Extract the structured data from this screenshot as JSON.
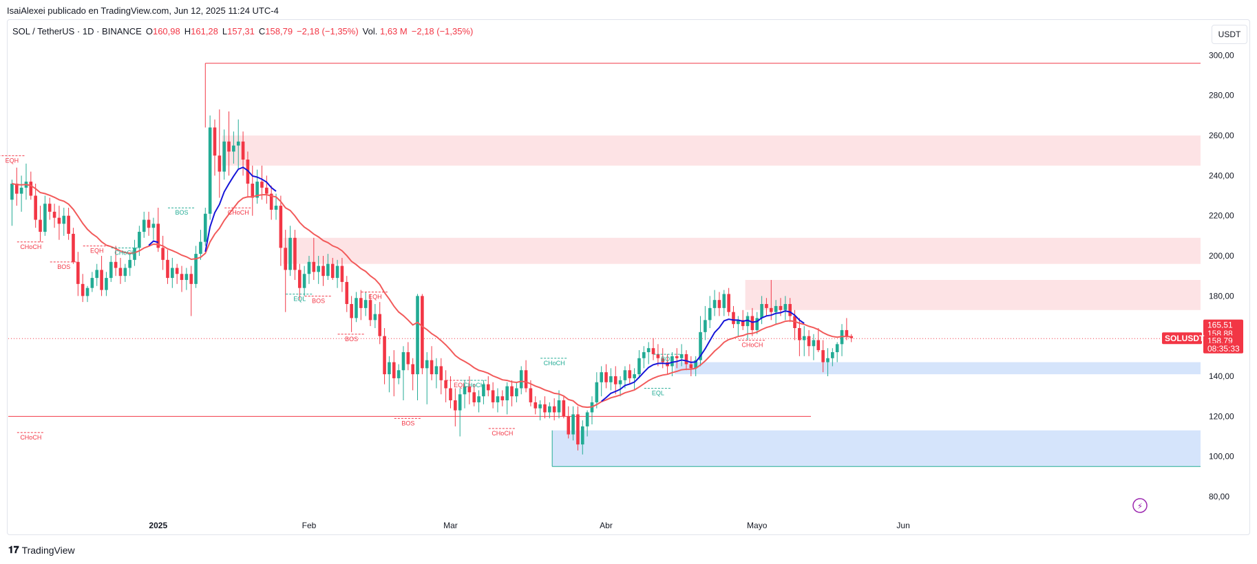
{
  "caption": "IsaiAlexei publicado en TradingView.com, Jun 12, 2025 11:24 UTC-4",
  "legend": {
    "symbol": "SOL / TetherUS · 1D · BINANCE",
    "o_label": "O",
    "o_value": "160,98",
    "h_label": "H",
    "h_value": "161,28",
    "l_label": "L",
    "l_value": "157,31",
    "c_label": "C",
    "c_value": "158,79",
    "change": "−2,18 (−1,35%)",
    "vol_label": "Vol.",
    "vol_value": "1,63 M",
    "vol_change": "−2,18 (−1,35%)"
  },
  "currency_button": "USDT",
  "brand": "TradingView",
  "price_tags": [
    {
      "text": "165,51",
      "color": "#f23645"
    },
    {
      "text": "158,88",
      "color": "#f23645"
    },
    {
      "text": "158,79",
      "color": "#f23645"
    },
    {
      "text": "08:35:33",
      "color": "#f23645"
    }
  ],
  "symbol_tag": "SOLUSDT",
  "colors": {
    "up": "#22ab94",
    "down": "#f23645",
    "ema_fast": "#1515d8",
    "ema_slow": "#f25a5a",
    "supply": "#fde3e5",
    "demand": "#d5e4fb"
  },
  "chart_data": {
    "type": "candlestick",
    "ylim": [
      75,
      305
    ],
    "y_ticks": [
      "80,00",
      "100,00",
      "120,00",
      "140,00",
      "160,00",
      "180,00",
      "200,00",
      "220,00",
      "240,00",
      "260,00",
      "280,00",
      "300,00"
    ],
    "x_ticks": [
      "2025",
      "Feb",
      "Mar",
      "Abr",
      "Mayo",
      "Jun"
    ],
    "candles": [
      [
        228,
        238,
        215,
        236
      ],
      [
        236,
        244,
        225,
        231
      ],
      [
        231,
        240,
        222,
        234
      ],
      [
        234,
        246,
        228,
        237
      ],
      [
        237,
        242,
        228,
        230
      ],
      [
        230,
        236,
        214,
        218
      ],
      [
        218,
        225,
        207,
        212
      ],
      [
        212,
        230,
        210,
        226
      ],
      [
        226,
        229,
        218,
        222
      ],
      [
        222,
        226,
        214,
        219
      ],
      [
        219,
        225,
        208,
        216
      ],
      [
        216,
        224,
        210,
        220
      ],
      [
        220,
        224,
        208,
        211
      ],
      [
        211,
        214,
        196,
        197
      ],
      [
        197,
        202,
        180,
        186
      ],
      [
        186,
        191,
        177,
        180
      ],
      [
        180,
        185,
        177,
        184
      ],
      [
        184,
        192,
        182,
        189
      ],
      [
        189,
        196,
        185,
        193
      ],
      [
        193,
        200,
        180,
        183
      ],
      [
        183,
        192,
        180,
        189
      ],
      [
        189,
        200,
        187,
        197
      ],
      [
        197,
        205,
        190,
        194
      ],
      [
        194,
        199,
        186,
        190
      ],
      [
        190,
        196,
        187,
        194
      ],
      [
        194,
        201,
        190,
        198
      ],
      [
        198,
        208,
        195,
        204
      ],
      [
        204,
        215,
        200,
        212
      ],
      [
        212,
        222,
        209,
        218
      ],
      [
        218,
        222,
        210,
        214
      ],
      [
        214,
        219,
        208,
        216
      ],
      [
        216,
        224,
        202,
        204
      ],
      [
        204,
        210,
        193,
        198
      ],
      [
        198,
        203,
        186,
        189
      ],
      [
        189,
        199,
        184,
        194
      ],
      [
        194,
        196,
        186,
        191
      ],
      [
        191,
        195,
        182,
        188
      ],
      [
        188,
        194,
        183,
        191
      ],
      [
        191,
        195,
        170,
        186
      ],
      [
        186,
        205,
        184,
        201
      ],
      [
        201,
        213,
        198,
        207
      ],
      [
        207,
        224,
        205,
        221
      ],
      [
        221,
        270,
        218,
        264
      ],
      [
        264,
        268,
        240,
        250
      ],
      [
        250,
        273,
        229,
        242
      ],
      [
        242,
        263,
        238,
        257
      ],
      [
        257,
        272,
        240,
        252
      ],
      [
        252,
        262,
        246,
        255
      ],
      [
        255,
        268,
        243,
        257
      ],
      [
        257,
        262,
        240,
        248
      ],
      [
        248,
        252,
        229,
        236
      ],
      [
        236,
        245,
        220,
        229
      ],
      [
        229,
        243,
        226,
        237
      ],
      [
        237,
        245,
        228,
        234
      ],
      [
        234,
        240,
        226,
        231
      ],
      [
        231,
        235,
        218,
        223
      ],
      [
        223,
        231,
        218,
        225
      ],
      [
        225,
        230,
        195,
        204
      ],
      [
        204,
        213,
        172,
        193
      ],
      [
        193,
        215,
        190,
        209
      ],
      [
        209,
        213,
        188,
        193
      ],
      [
        193,
        196,
        178,
        184
      ],
      [
        184,
        195,
        180,
        191
      ],
      [
        191,
        200,
        186,
        197
      ],
      [
        197,
        209,
        188,
        192
      ],
      [
        192,
        200,
        186,
        195
      ],
      [
        195,
        200,
        185,
        190
      ],
      [
        190,
        201,
        188,
        196
      ],
      [
        196,
        199,
        188,
        189
      ],
      [
        189,
        198,
        184,
        195
      ],
      [
        195,
        199,
        182,
        187
      ],
      [
        187,
        190,
        172,
        176
      ],
      [
        176,
        180,
        162,
        169
      ],
      [
        169,
        182,
        167,
        179
      ],
      [
        179,
        183,
        168,
        174
      ],
      [
        174,
        182,
        170,
        178
      ],
      [
        178,
        181,
        165,
        168
      ],
      [
        168,
        176,
        164,
        171
      ],
      [
        171,
        177,
        156,
        160
      ],
      [
        160,
        164,
        136,
        141
      ],
      [
        141,
        150,
        132,
        147
      ],
      [
        147,
        153,
        130,
        139
      ],
      [
        139,
        146,
        136,
        143
      ],
      [
        143,
        155,
        128,
        152
      ],
      [
        152,
        157,
        143,
        146
      ],
      [
        146,
        149,
        133,
        141
      ],
      [
        141,
        181,
        128,
        180
      ],
      [
        180,
        181,
        141,
        144
      ],
      [
        144,
        152,
        126,
        148
      ],
      [
        148,
        155,
        138,
        141
      ],
      [
        141,
        149,
        134,
        145
      ],
      [
        145,
        149,
        131,
        138
      ],
      [
        138,
        143,
        127,
        134
      ],
      [
        134,
        140,
        124,
        128
      ],
      [
        128,
        134,
        115,
        123
      ],
      [
        123,
        134,
        110,
        131
      ],
      [
        131,
        138,
        124,
        135
      ],
      [
        135,
        140,
        126,
        132
      ],
      [
        132,
        136,
        125,
        127
      ],
      [
        127,
        133,
        122,
        130
      ],
      [
        130,
        138,
        126,
        136
      ],
      [
        136,
        140,
        130,
        133
      ],
      [
        133,
        137,
        124,
        127
      ],
      [
        127,
        134,
        122,
        130
      ],
      [
        130,
        133,
        125,
        128
      ],
      [
        128,
        137,
        121,
        135
      ],
      [
        135,
        138,
        125,
        130
      ],
      [
        130,
        137,
        127,
        134
      ],
      [
        134,
        145,
        131,
        143
      ],
      [
        143,
        148,
        132,
        134
      ],
      [
        134,
        138,
        125,
        127
      ],
      [
        127,
        130,
        121,
        124
      ],
      [
        124,
        128,
        118,
        126
      ],
      [
        126,
        130,
        119,
        122
      ],
      [
        122,
        127,
        119,
        125
      ],
      [
        125,
        129,
        118,
        122
      ],
      [
        122,
        133,
        119,
        128
      ],
      [
        128,
        130,
        119,
        120
      ],
      [
        120,
        125,
        109,
        111
      ],
      [
        111,
        125,
        108,
        121
      ],
      [
        121,
        125,
        103,
        106
      ],
      [
        106,
        118,
        101,
        115
      ],
      [
        115,
        123,
        110,
        122
      ],
      [
        122,
        130,
        116,
        127
      ],
      [
        127,
        142,
        124,
        137
      ],
      [
        137,
        145,
        130,
        142
      ],
      [
        142,
        146,
        134,
        137
      ],
      [
        137,
        144,
        133,
        140
      ],
      [
        140,
        145,
        131,
        136
      ],
      [
        136,
        140,
        130,
        138
      ],
      [
        138,
        145,
        134,
        143
      ],
      [
        143,
        146,
        136,
        139
      ],
      [
        139,
        144,
        133,
        141
      ],
      [
        141,
        153,
        139,
        149
      ],
      [
        149,
        155,
        144,
        152
      ],
      [
        152,
        157,
        146,
        154
      ],
      [
        154,
        159,
        148,
        151
      ],
      [
        151,
        156,
        145,
        149
      ],
      [
        149,
        154,
        144,
        147
      ],
      [
        147,
        151,
        141,
        145
      ],
      [
        145,
        152,
        140,
        150
      ],
      [
        150,
        154,
        144,
        149
      ],
      [
        149,
        156,
        145,
        151
      ],
      [
        151,
        153,
        143,
        146
      ],
      [
        146,
        150,
        140,
        144
      ],
      [
        144,
        150,
        140,
        148
      ],
      [
        148,
        170,
        145,
        162
      ],
      [
        162,
        175,
        158,
        168
      ],
      [
        168,
        180,
        164,
        174
      ],
      [
        174,
        183,
        170,
        178
      ],
      [
        178,
        182,
        170,
        174
      ],
      [
        174,
        183,
        170,
        181
      ],
      [
        181,
        184,
        170,
        172
      ],
      [
        172,
        175,
        164,
        166
      ],
      [
        166,
        170,
        160,
        168
      ],
      [
        168,
        173,
        163,
        165
      ],
      [
        165,
        172,
        158,
        170
      ],
      [
        170,
        174,
        160,
        163
      ],
      [
        163,
        172,
        161,
        169
      ],
      [
        169,
        180,
        166,
        176
      ],
      [
        176,
        179,
        170,
        174
      ],
      [
        174,
        188,
        168,
        172
      ],
      [
        172,
        178,
        166,
        175
      ],
      [
        175,
        179,
        170,
        173
      ],
      [
        173,
        180,
        168,
        176
      ],
      [
        176,
        179,
        167,
        170
      ],
      [
        170,
        173,
        158,
        164
      ],
      [
        164,
        169,
        150,
        158
      ],
      [
        158,
        165,
        150,
        160
      ],
      [
        160,
        163,
        150,
        155
      ],
      [
        155,
        161,
        148,
        158
      ],
      [
        158,
        164,
        152,
        153
      ],
      [
        153,
        158,
        142,
        147
      ],
      [
        147,
        154,
        140,
        149
      ],
      [
        149,
        154,
        145,
        152
      ],
      [
        152,
        157,
        147,
        156
      ],
      [
        156,
        166,
        150,
        163
      ],
      [
        163,
        169,
        158,
        160
      ],
      [
        160,
        161,
        157,
        159
      ]
    ],
    "ema_fast": [
      [
        0,
        254
      ],
      [
        10,
        256
      ],
      [
        48,
        250
      ],
      [
        67,
        248
      ],
      [
        70,
        236
      ],
      [
        74,
        232
      ],
      [
        86,
        224
      ],
      [
        106,
        230
      ],
      [
        122,
        222
      ],
      [
        136,
        234
      ],
      [
        166,
        212
      ],
      [
        186,
        184
      ],
      [
        205,
        183
      ],
      [
        214,
        178
      ],
      [
        218,
        180
      ],
      [
        236,
        178
      ],
      [
        247,
        170
      ],
      [
        258,
        158
      ],
      [
        270,
        155
      ],
      [
        290,
        150
      ],
      [
        330,
        200
      ],
      [
        346,
        224
      ],
      [
        390,
        232
      ],
      [
        418,
        236
      ],
      [
        425,
        230
      ],
      [
        433,
        196
      ],
      [
        476,
        172
      ],
      [
        517,
        191
      ],
      [
        563,
        183
      ],
      [
        580,
        193
      ],
      [
        595,
        170
      ],
      [
        622,
        183
      ],
      [
        640,
        210
      ],
      [
        660,
        233
      ],
      [
        681,
        245
      ],
      [
        698,
        254
      ],
      [
        712,
        254
      ],
      [
        732,
        253
      ],
      [
        757,
        250
      ],
      [
        782,
        248
      ],
      [
        818,
        246
      ],
      [
        864,
        240
      ],
      [
        890,
        230
      ]
    ],
    "ema_slow_points_note": "",
    "series": [
      {
        "name": "",
        "kind": "ema_fast"
      },
      {
        "name": "",
        "kind": "ema_slow"
      }
    ],
    "zones": [
      {
        "kind": "supply",
        "y0": 245,
        "y1": 260,
        "x0": 45,
        "x1": "end"
      },
      {
        "kind": "supply",
        "y0": 196,
        "y1": 209,
        "x0": 58,
        "x1": "end"
      },
      {
        "kind": "supply",
        "y0": 173,
        "y1": 188,
        "x0": 156,
        "x1": "end"
      },
      {
        "kind": "demand",
        "y0": 141,
        "y1": 147,
        "x0": 141,
        "x1": "end"
      },
      {
        "kind": "demand",
        "y0": 95,
        "y1": 113,
        "x0": 115,
        "x1": "end"
      }
    ],
    "annotations": [
      {
        "text": "EQH",
        "x": 0,
        "y": 252,
        "color": "#f23645"
      },
      {
        "text": "CHoCH",
        "x": 4,
        "y": 209,
        "color": "#f23645"
      },
      {
        "text": "BOS",
        "x": 11,
        "y": 199,
        "color": "#f23645"
      },
      {
        "text": "EQH",
        "x": 18,
        "y": 207,
        "color": "#f23645"
      },
      {
        "text": "CHoCH",
        "x": 24,
        "y": 206,
        "color": "#22ab94"
      },
      {
        "text": "BOS",
        "x": 36,
        "y": 226,
        "color": "#22ab94"
      },
      {
        "text": "CHoCH",
        "x": 48,
        "y": 226,
        "color": "#f23645"
      },
      {
        "text": "EQL",
        "x": 61,
        "y": 183,
        "color": "#22ab94"
      },
      {
        "text": "BOS",
        "x": 65,
        "y": 182,
        "color": "#f23645"
      },
      {
        "text": "EQH",
        "x": 77,
        "y": 184,
        "color": "#f23645"
      },
      {
        "text": "BOS",
        "x": 72,
        "y": 163,
        "color": "#f23645"
      },
      {
        "text": "BOS",
        "x": 84,
        "y": 121,
        "color": "#f23645"
      },
      {
        "text": "EQL",
        "x": 95,
        "y": 140,
        "color": "#f23645"
      },
      {
        "text": "CHoCH",
        "x": 98,
        "y": 140,
        "color": "#22ab94"
      },
      {
        "text": "CHoCH",
        "x": 104,
        "y": 116,
        "color": "#f23645"
      },
      {
        "text": "CHoCH",
        "x": 115,
        "y": 151,
        "color": "#22ab94"
      },
      {
        "text": "EQL",
        "x": 137,
        "y": 136,
        "color": "#22ab94"
      },
      {
        "text": "BOS",
        "x": 139,
        "y": 153,
        "color": "#22ab94"
      },
      {
        "text": "CHoCH",
        "x": 157,
        "y": 160,
        "color": "#f23645"
      },
      {
        "text": "CHoCH",
        "x": 4,
        "y": 114,
        "color": "#f23645"
      }
    ]
  }
}
